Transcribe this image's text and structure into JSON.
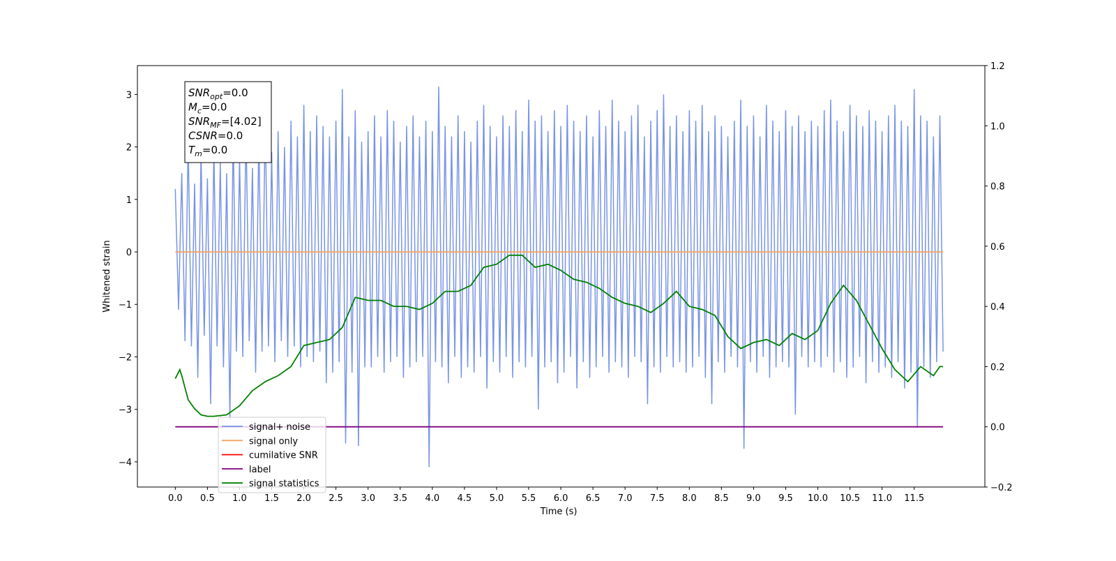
{
  "chart_data": {
    "type": "line",
    "xlabel": "Time (s)",
    "ylabel": "Whitened strain",
    "xlim": [
      -0.59,
      12.6
    ],
    "ylim": [
      -4.48,
      3.55
    ],
    "y2lim": [
      -0.2,
      1.2
    ],
    "xticks": [
      {
        "value": 0,
        "label": "0.0"
      },
      0.5,
      {
        "value": 1,
        "label": "1.0"
      },
      1.5,
      {
        "value": 2,
        "label": "2.0"
      },
      2.5,
      {
        "value": 3,
        "label": "3.0"
      },
      3.5,
      {
        "value": 4,
        "label": "4.0"
      },
      4.5,
      {
        "value": 5,
        "label": "5.0"
      },
      5.5,
      {
        "value": 6,
        "label": "6.0"
      },
      6.5,
      {
        "value": 7,
        "label": "7.0"
      },
      7.5,
      {
        "value": 8,
        "label": "8.0"
      },
      8.5,
      {
        "value": 9,
        "label": "9.0"
      },
      9.5,
      {
        "value": 10,
        "label": "10.0"
      },
      10.5,
      {
        "value": 11,
        "label": "11.0"
      },
      11.5
    ],
    "yticks": [
      {
        "value": -4,
        "label": "−4"
      },
      {
        "value": -3,
        "label": "−3"
      },
      {
        "value": -2,
        "label": "−2"
      },
      {
        "value": -1,
        "label": "−1"
      },
      0,
      1,
      2,
      3
    ],
    "y2ticks": [
      {
        "value": -0.2,
        "label": "−0.2"
      },
      {
        "value": 0,
        "label": "0.0"
      },
      0.2,
      0.4,
      0.6,
      0.8,
      {
        "value": 1,
        "label": "1.0"
      },
      1.2
    ],
    "legend": "lower left",
    "annotations": [
      {
        "main": "SNR",
        "sub": "opt",
        "rest": "=0.0"
      },
      {
        "main": "M",
        "sub": "c",
        "rest": "=0.0"
      },
      {
        "main": "SNR",
        "sub": "MF",
        "rest": "=[4.02]"
      },
      {
        "main": "CSNR",
        "sub": "",
        "rest": "=0.0"
      },
      {
        "main": "T",
        "sub": "m",
        "rest": "=0.0"
      }
    ],
    "series": [
      {
        "name": "signal+ noise",
        "color": "#7894e6",
        "axis": "y",
        "x": [
          0,
          0.05,
          0.1,
          0.15,
          0.2,
          0.25,
          0.3,
          0.35,
          0.4,
          0.45,
          0.5,
          0.55,
          0.6,
          0.65,
          0.7,
          0.75,
          0.8,
          0.85,
          0.9,
          0.95,
          1,
          1.05,
          1.1,
          1.15,
          1.2,
          1.25,
          1.3,
          1.35,
          1.4,
          1.45,
          1.5,
          1.55,
          1.6,
          1.65,
          1.7,
          1.75,
          1.8,
          1.85,
          1.9,
          1.95,
          2,
          2.05,
          2.1,
          2.15,
          2.2,
          2.25,
          2.3,
          2.35,
          2.4,
          2.45,
          2.5,
          2.55,
          2.6,
          2.65,
          2.7,
          2.75,
          2.8,
          2.85,
          2.9,
          2.95,
          3,
          3.05,
          3.1,
          3.15,
          3.2,
          3.25,
          3.3,
          3.35,
          3.4,
          3.45,
          3.5,
          3.55,
          3.6,
          3.65,
          3.7,
          3.75,
          3.8,
          3.85,
          3.9,
          3.95,
          4,
          4.05,
          4.1,
          4.15,
          4.2,
          4.25,
          4.3,
          4.35,
          4.4,
          4.45,
          4.5,
          4.55,
          4.6,
          4.65,
          4.7,
          4.75,
          4.8,
          4.85,
          4.9,
          4.95,
          5,
          5.05,
          5.1,
          5.15,
          5.2,
          5.25,
          5.3,
          5.35,
          5.4,
          5.45,
          5.5,
          5.55,
          5.6,
          5.65,
          5.7,
          5.75,
          5.8,
          5.85,
          5.9,
          5.95,
          6,
          6.05,
          6.1,
          6.15,
          6.2,
          6.25,
          6.3,
          6.35,
          6.4,
          6.45,
          6.5,
          6.55,
          6.6,
          6.65,
          6.7,
          6.75,
          6.8,
          6.85,
          6.9,
          6.95,
          7,
          7.05,
          7.1,
          7.15,
          7.2,
          7.25,
          7.3,
          7.35,
          7.4,
          7.45,
          7.5,
          7.55,
          7.6,
          7.65,
          7.7,
          7.75,
          7.8,
          7.85,
          7.9,
          7.95,
          8,
          8.05,
          8.1,
          8.15,
          8.2,
          8.25,
          8.3,
          8.35,
          8.4,
          8.45,
          8.5,
          8.55,
          8.6,
          8.65,
          8.7,
          8.75,
          8.8,
          8.85,
          8.9,
          8.95,
          9,
          9.05,
          9.1,
          9.15,
          9.2,
          9.25,
          9.3,
          9.35,
          9.4,
          9.45,
          9.5,
          9.55,
          9.6,
          9.65,
          9.7,
          9.75,
          9.8,
          9.85,
          9.9,
          9.95,
          10,
          10.05,
          10.1,
          10.15,
          10.2,
          10.25,
          10.3,
          10.35,
          10.4,
          10.45,
          10.5,
          10.55,
          10.6,
          10.65,
          10.7,
          10.75,
          10.8,
          10.85,
          10.9,
          10.95,
          11,
          11.05,
          11.1,
          11.15,
          11.2,
          11.25,
          11.3,
          11.35,
          11.4,
          11.45,
          11.5,
          11.55,
          11.6,
          11.65,
          11.7,
          11.75,
          11.8,
          11.85,
          11.9,
          11.95
        ],
        "values": [
          1.2,
          -1.1,
          1.5,
          -1.7,
          2.1,
          -1.8,
          1.3,
          -2.4,
          1.9,
          -1.6,
          1.4,
          -2.9,
          2.0,
          -1.8,
          1.7,
          -2.2,
          1.5,
          -3.2,
          2.3,
          -1.9,
          1.8,
          -2.0,
          2.4,
          -1.7,
          1.6,
          -2.3,
          2.2,
          -1.9,
          2.6,
          -1.8,
          1.9,
          -2.1,
          2.3,
          -1.7,
          2.0,
          -2.0,
          2.5,
          -1.8,
          2.2,
          -2.2,
          2.8,
          -2.0,
          2.3,
          -2.1,
          2.6,
          -1.9,
          2.4,
          -2.5,
          2.2,
          -2.3,
          2.5,
          -2.1,
          3.1,
          -3.65,
          2.2,
          -2.3,
          2.7,
          -3.7,
          2.1,
          -2.2,
          2.3,
          -2.2,
          2.6,
          -2.0,
          2.2,
          -2.3,
          2.7,
          -2.1,
          2.5,
          -2.0,
          2.1,
          -2.4,
          2.4,
          -2.2,
          2.6,
          -2.1,
          2.2,
          -2.0,
          2.5,
          -4.1,
          2.3,
          -2.1,
          3.15,
          -2.2,
          2.4,
          -2.5,
          2.2,
          -2.0,
          2.6,
          -2.4,
          2.3,
          -2.2,
          2.1,
          -2.3,
          2.5,
          -2.0,
          2.8,
          -2.6,
          2.4,
          -2.1,
          2.2,
          -2.3,
          2.6,
          -2.0,
          2.4,
          -2.4,
          2.7,
          -2.1,
          2.3,
          -2.2,
          2.9,
          -2.0,
          2.5,
          -3.0,
          2.6,
          -2.2,
          2.3,
          -2.1,
          2.7,
          -2.5,
          2.4,
          -2.3,
          2.8,
          -2.0,
          2.5,
          -2.6,
          2.3,
          -2.1,
          2.6,
          -2.4,
          2.2,
          -2.2,
          2.7,
          -2.0,
          2.4,
          -2.3,
          2.9,
          -2.1,
          2.5,
          -2.2,
          2.3,
          -2.4,
          2.6,
          -2.0,
          2.8,
          -2.1,
          2.2,
          -2.9,
          2.5,
          -2.2,
          2.7,
          -2.3,
          3.0,
          -2.0,
          2.4,
          -2.2,
          2.6,
          -2.1,
          2.3,
          -2.3,
          2.7,
          -2.2,
          2.5,
          -2.0,
          2.8,
          -2.4,
          2.3,
          -2.9,
          2.6,
          -2.1,
          2.4,
          -2.3,
          2.2,
          -2.0,
          2.5,
          -2.2,
          2.9,
          -3.75,
          2.4,
          -2.1,
          2.6,
          -2.3,
          2.2,
          -2.0,
          2.8,
          -2.4,
          2.5,
          -2.2,
          2.3,
          -2.1,
          2.7,
          -2.2,
          2.4,
          -3.1,
          2.6,
          -2.0,
          2.3,
          -2.2,
          2.5,
          -2.1,
          2.4,
          -2.2,
          2.7,
          -2.0,
          2.9,
          -2.3,
          2.5,
          -2.1,
          2.3,
          -2.4,
          2.8,
          -2.2,
          2.6,
          -2.0,
          2.4,
          -2.5,
          2.7,
          -2.1,
          2.5,
          -2.3,
          2.3,
          -2.2,
          2.6,
          -2.4,
          2.8,
          -2.1,
          2.5,
          -2.6,
          2.4,
          -2.3,
          3.1,
          -3.35,
          2.6,
          -2.2,
          2.5,
          -2.4,
          2.2,
          -2.1,
          2.6,
          -1.9
        ]
      },
      {
        "name": "signal only",
        "color": "#f5a25d",
        "axis": "y",
        "x": [
          0,
          11.95
        ],
        "values": [
          0,
          0
        ]
      },
      {
        "name": "cumilative SNR",
        "color": "#ff0000",
        "axis": "y",
        "x": [],
        "values": []
      },
      {
        "name": "label",
        "color": "#800080",
        "axis": "y2",
        "x": [
          0,
          11.95
        ],
        "values": [
          0,
          0
        ]
      },
      {
        "name": "signal statistics",
        "color": "#008000",
        "axis": "y2",
        "x": [
          0,
          0.07,
          0.1,
          0.2,
          0.3,
          0.4,
          0.5,
          0.6,
          0.8,
          1.0,
          1.2,
          1.4,
          1.6,
          1.8,
          2.0,
          2.2,
          2.4,
          2.6,
          2.8,
          3.0,
          3.2,
          3.4,
          3.6,
          3.8,
          4.0,
          4.2,
          4.4,
          4.6,
          4.8,
          5.0,
          5.2,
          5.4,
          5.6,
          5.8,
          6.0,
          6.2,
          6.4,
          6.6,
          6.8,
          7.0,
          7.2,
          7.4,
          7.6,
          7.8,
          8.0,
          8.2,
          8.4,
          8.6,
          8.8,
          9.0,
          9.2,
          9.4,
          9.6,
          9.8,
          10.0,
          10.2,
          10.4,
          10.6,
          10.8,
          11.0,
          11.2,
          11.4,
          11.6,
          11.8,
          11.9,
          11.95
        ],
        "values": [
          0.16,
          0.19,
          0.17,
          0.09,
          0.06,
          0.04,
          0.035,
          0.035,
          0.04,
          0.07,
          0.12,
          0.15,
          0.17,
          0.2,
          0.27,
          0.28,
          0.29,
          0.33,
          0.43,
          0.42,
          0.42,
          0.4,
          0.4,
          0.39,
          0.41,
          0.45,
          0.45,
          0.47,
          0.53,
          0.54,
          0.57,
          0.57,
          0.53,
          0.54,
          0.52,
          0.49,
          0.48,
          0.46,
          0.43,
          0.41,
          0.4,
          0.38,
          0.41,
          0.45,
          0.4,
          0.39,
          0.37,
          0.3,
          0.26,
          0.28,
          0.29,
          0.27,
          0.31,
          0.29,
          0.32,
          0.41,
          0.47,
          0.42,
          0.34,
          0.26,
          0.19,
          0.15,
          0.2,
          0.17,
          0.2,
          0.2
        ]
      }
    ]
  }
}
